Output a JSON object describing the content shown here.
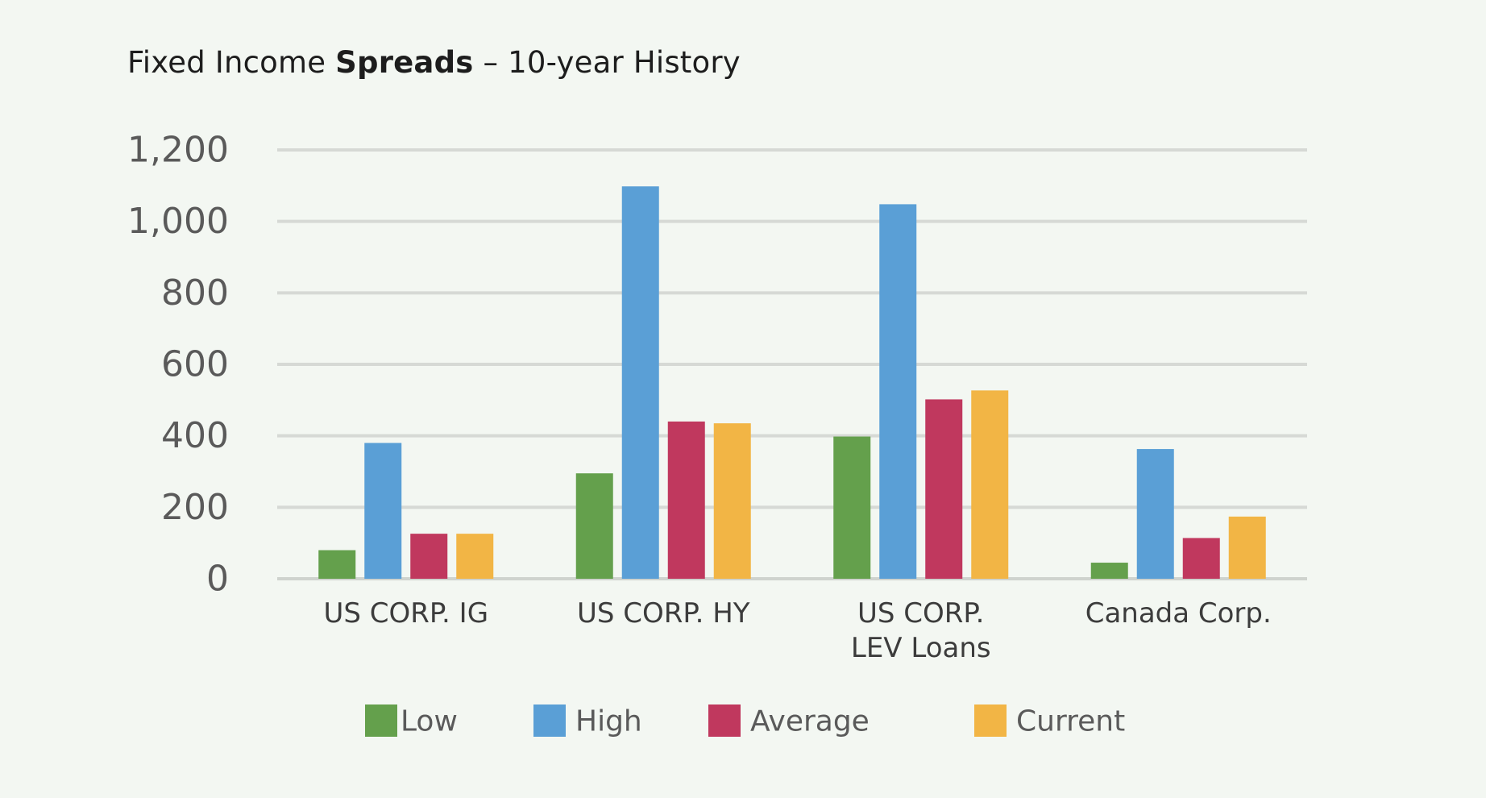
{
  "title": {
    "part1": "Fixed Income ",
    "part2": "Spreads",
    "part3": " – 10-year History"
  },
  "chart_data": {
    "type": "bar",
    "title": "Fixed Income Spreads – 10-year History",
    "categories": [
      [
        "US CORP. IG"
      ],
      [
        "US CORP. HY"
      ],
      [
        "US CORP.",
        "LEV Loans"
      ],
      [
        "Canada Corp."
      ]
    ],
    "series": [
      {
        "name": "Low",
        "color": "#64a04c",
        "values": [
          80,
          295,
          398,
          45
        ]
      },
      {
        "name": "High",
        "color": "#5a9fd6",
        "values": [
          380,
          1098,
          1048,
          363
        ]
      },
      {
        "name": "Average",
        "color": "#c0385e",
        "values": [
          126,
          440,
          502,
          114
        ]
      },
      {
        "name": "Current",
        "color": "#f2b545",
        "values": [
          126,
          435,
          527,
          174
        ]
      }
    ],
    "ylim": [
      0,
      1200
    ],
    "yticks": [
      0,
      200,
      400,
      600,
      800,
      1000,
      1200
    ],
    "ytick_labels": [
      "0",
      "200",
      "400",
      "600",
      "800",
      "1,000",
      "1,200"
    ],
    "xlabel": "",
    "ylabel": "",
    "grid": true,
    "legend_position": "bottom"
  }
}
